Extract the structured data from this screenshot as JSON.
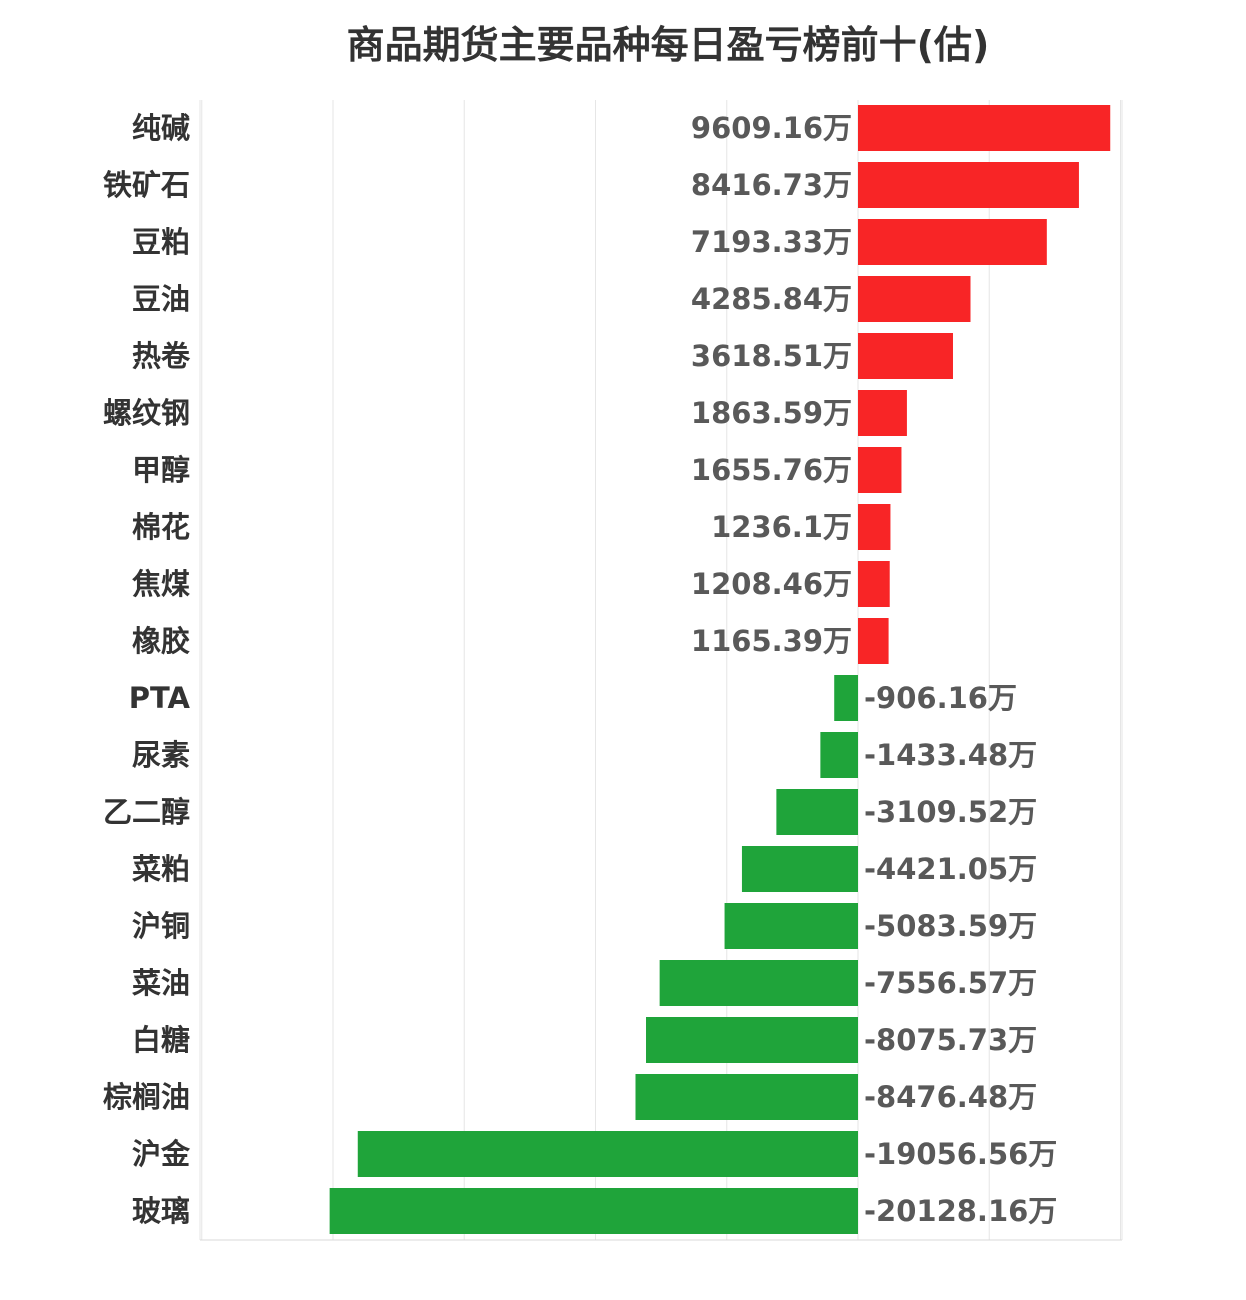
{
  "chart_data": {
    "type": "bar",
    "orientation": "horizontal",
    "title": "商品期货主要品种每日盈亏榜前十(估)",
    "unit": "万",
    "xlim": [
      -25000,
      10000
    ],
    "grid": true,
    "categories": [
      "纯碱",
      "铁矿石",
      "豆粕",
      "豆油",
      "热卷",
      "螺纹钢",
      "甲醇",
      "棉花",
      "焦煤",
      "橡胶",
      "PTA",
      "尿素",
      "乙二醇",
      "菜粕",
      "沪铜",
      "菜油",
      "白糖",
      "棕榈油",
      "沪金",
      "玻璃"
    ],
    "values": [
      9609.16,
      8416.73,
      7193.33,
      4285.84,
      3618.51,
      1863.59,
      1655.76,
      1236.1,
      1208.46,
      1165.39,
      -906.16,
      -1433.48,
      -3109.52,
      -4421.05,
      -5083.59,
      -7556.57,
      -8075.73,
      -8476.48,
      -19056.56,
      -20128.16
    ],
    "value_labels": [
      "9609.16万",
      "8416.73万",
      "7193.33万",
      "4285.84万",
      "3618.51万",
      "1863.59万",
      "1655.76万",
      "1236.1万",
      "1208.46万",
      "1165.39万",
      "-906.16万",
      "-1433.48万",
      "-3109.52万",
      "-4421.05万",
      "-5083.59万",
      "-7556.57万",
      "-8075.73万",
      "-8476.48万",
      "-19056.56万",
      "-20128.16万"
    ],
    "colors": {
      "positive": "#f82526",
      "negative": "#1fa43a"
    }
  }
}
